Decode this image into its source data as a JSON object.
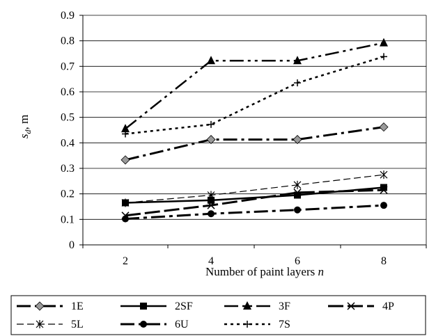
{
  "chart_data": {
    "type": "line",
    "x": [
      2,
      4,
      6,
      8
    ],
    "xlabel": "Number of paint layers",
    "xlabel_var": "n",
    "ylabel_var": "s",
    "ylabel_sub": "d",
    "ylabel_unit": ", m",
    "ylim": [
      0,
      0.9
    ],
    "yticks": [
      "0",
      "0.1",
      "0.2",
      "0.3",
      "0.4",
      "0.5",
      "0.6",
      "0.7",
      "0.8",
      "0.9"
    ],
    "xticks": [
      "2",
      "4",
      "6",
      "8"
    ],
    "grid": "horizontal",
    "legend_position": "bottom",
    "series": [
      {
        "name": "1E",
        "values": [
          0.333,
          0.413,
          0.413,
          0.462
        ],
        "dash": "20 6 4 6",
        "width": 3,
        "marker": "diamond",
        "marker_fill": "#9a9a9a"
      },
      {
        "name": "2SF",
        "values": [
          0.165,
          0.175,
          0.195,
          0.225
        ],
        "dash": "",
        "width": 2.5,
        "marker": "square",
        "marker_fill": "#000000"
      },
      {
        "name": "3F",
        "values": [
          0.455,
          0.722,
          0.722,
          0.792
        ],
        "dash": "20 6 4 6 4 6",
        "width": 2.5,
        "marker": "triangle",
        "marker_fill": "#000000"
      },
      {
        "name": "4P",
        "values": [
          0.115,
          0.155,
          0.205,
          0.215
        ],
        "dash": "22 6",
        "width": 3,
        "marker": "x",
        "marker_fill": "#000000"
      },
      {
        "name": "5L",
        "values": [
          0.165,
          0.195,
          0.235,
          0.275
        ],
        "dash": "10 5",
        "width": 1.2,
        "marker": "asterisk",
        "marker_fill": "#000000"
      },
      {
        "name": "6U",
        "values": [
          0.102,
          0.122,
          0.137,
          0.155
        ],
        "dash": "20 6 5 6",
        "width": 3,
        "marker": "circle",
        "marker_fill": "#000000"
      },
      {
        "name": "7S",
        "values": [
          0.435,
          0.472,
          0.635,
          0.738
        ],
        "dash": "4 5",
        "width": 2.5,
        "marker": "plus",
        "marker_fill": "#000000"
      }
    ]
  }
}
